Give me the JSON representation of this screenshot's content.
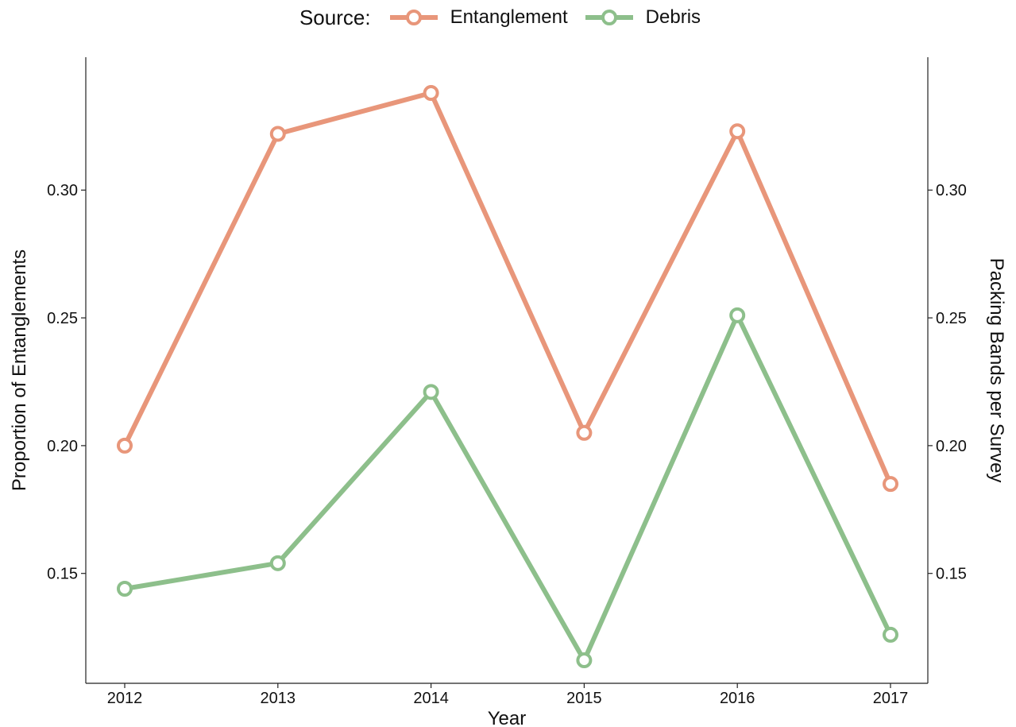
{
  "legend": {
    "title": "Source:",
    "placement": "top"
  },
  "chart_data": {
    "type": "line",
    "xlabel": "Year",
    "ylabel": "Proportion of Entanglements",
    "ylabel_right": "Packing Bands per Survey",
    "categories": [
      "2012",
      "2013",
      "2014",
      "2015",
      "2016",
      "2017"
    ],
    "ylim": [
      0.107,
      0.352
    ],
    "yticks": [
      0.15,
      0.2,
      0.25,
      0.3
    ],
    "ytick_labels": [
      "0.15",
      "0.20",
      "0.25",
      "0.30"
    ],
    "grid": false,
    "series": [
      {
        "name": "Entanglement",
        "color": "#E8967A",
        "values": [
          0.2,
          0.322,
          0.338,
          0.205,
          0.323,
          0.185
        ]
      },
      {
        "name": "Debris",
        "color": "#8DBF8B",
        "values": [
          0.144,
          0.154,
          0.221,
          0.116,
          0.251,
          0.126
        ]
      }
    ]
  }
}
